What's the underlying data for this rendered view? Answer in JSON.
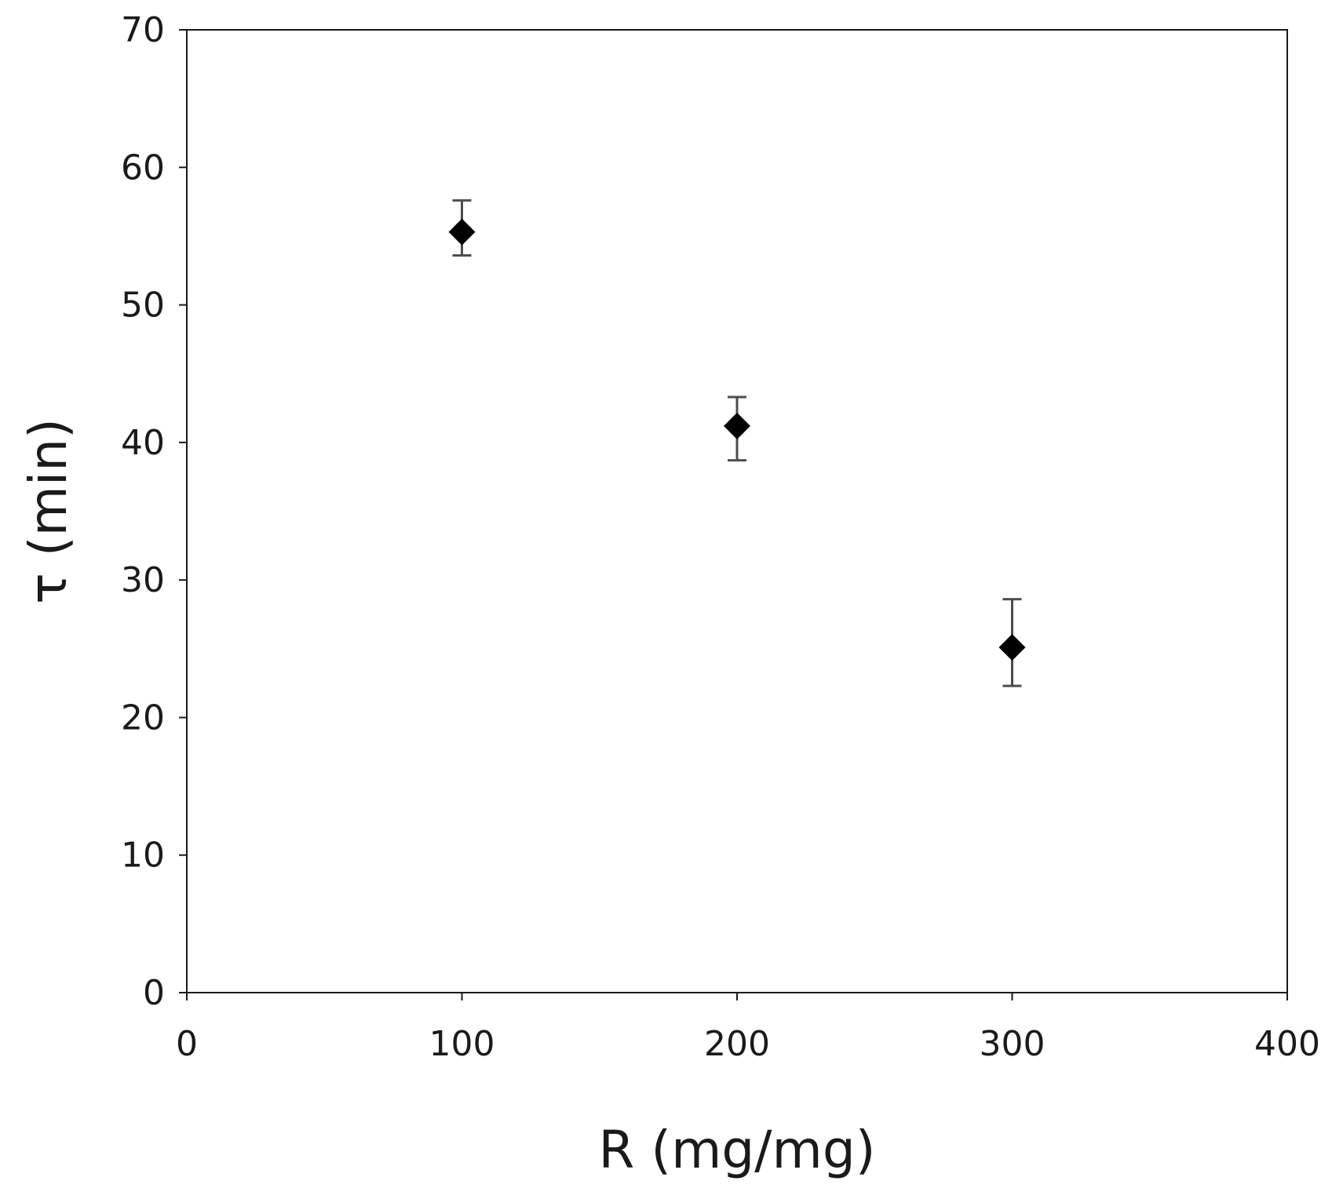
{
  "chart_data": {
    "type": "scatter",
    "title": "",
    "xlabel": "R (mg/mg)",
    "ylabel": "τ (min)",
    "xlim": [
      0,
      400
    ],
    "ylim": [
      0,
      70
    ],
    "xticks": [
      0,
      100,
      200,
      300,
      400
    ],
    "yticks": [
      0,
      10,
      20,
      30,
      40,
      50,
      60,
      70
    ],
    "grid": false,
    "legend": "none",
    "series": [
      {
        "marker": "diamond",
        "color": "#000000",
        "error_bar_color": "#4d4d4d",
        "points": [
          {
            "x": 100,
            "y": 55.3,
            "y_err_low": 53.6,
            "y_err_high": 57.6
          },
          {
            "x": 200,
            "y": 41.2,
            "y_err_low": 38.7,
            "y_err_high": 43.3
          },
          {
            "x": 300,
            "y": 25.1,
            "y_err_low": 22.3,
            "y_err_high": 28.6
          }
        ]
      }
    ]
  }
}
